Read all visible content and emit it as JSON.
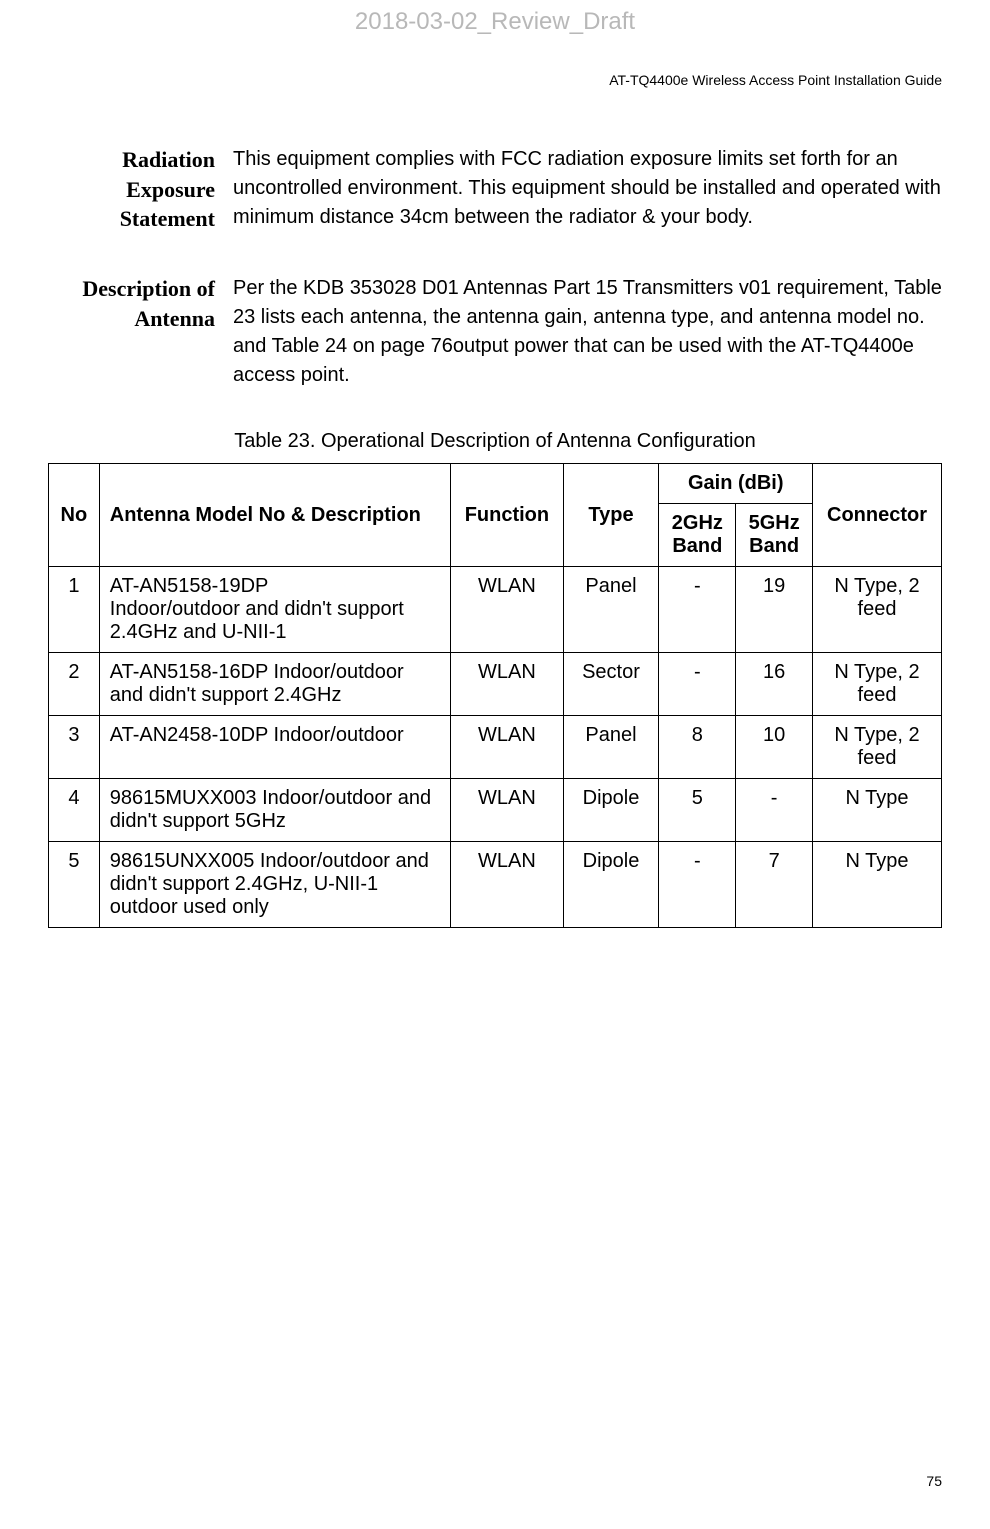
{
  "watermark": "2018-03-02_Review_Draft",
  "header": "AT-TQ4400e Wireless Access Point Installation Guide",
  "sections": {
    "radiation": {
      "heading": "Radiation Exposure Statement",
      "body": "This equipment complies with FCC radiation exposure limits set forth for an uncontrolled environment. This equipment should be installed and operated with minimum distance 34cm between the radiator & your body."
    },
    "antenna": {
      "heading": "Description of Antenna",
      "body": "Per the KDB 353028 D01 Antennas Part 15 Transmitters v01 requirement, Table 23 lists each antenna, the antenna gain, antenna type, and antenna model no. and Table 24 on page 76output power that can be used with the AT-TQ4400e access point."
    }
  },
  "table": {
    "caption": "Table 23.   Operational Description of Antenna Configuration",
    "headers": {
      "no": "No",
      "desc": "Antenna Model No & Description",
      "func": "Function",
      "type": "Type",
      "gain": "Gain (dBi)",
      "gain2g": "2GHz Band",
      "gain5g": "5GHz Band",
      "conn": "Connector"
    },
    "rows": [
      {
        "no": "1",
        "desc": "AT-AN5158-19DP\nIndoor/outdoor and didn't support 2.4GHz and U-NII-1",
        "func": "WLAN",
        "type": "Panel",
        "g2": "-",
        "g5": "19",
        "conn": "N Type, 2 feed"
      },
      {
        "no": "2",
        "desc": "AT-AN5158-16DP Indoor/outdoor and didn't support 2.4GHz",
        "func": "WLAN",
        "type": "Sector",
        "g2": "-",
        "g5": "16",
        "conn": "N Type, 2 feed"
      },
      {
        "no": "3",
        "desc": "AT-AN2458-10DP Indoor/outdoor",
        "func": "WLAN",
        "type": "Panel",
        "g2": "8",
        "g5": "10",
        "conn": "N Type, 2 feed"
      },
      {
        "no": "4",
        "desc": "98615MUXX003 Indoor/outdoor and didn't support 5GHz",
        "func": "WLAN",
        "type": "Dipole",
        "g2": "5",
        "g5": "-",
        "conn": "N Type"
      },
      {
        "no": "5",
        "desc": "98615UNXX005 Indoor/outdoor and didn't support 2.4GHz, U-NII-1 outdoor used only",
        "func": "WLAN",
        "type": "Dipole",
        "g2": "-",
        "g5": "7",
        "conn": "N Type"
      }
    ]
  },
  "pageNumber": "75"
}
